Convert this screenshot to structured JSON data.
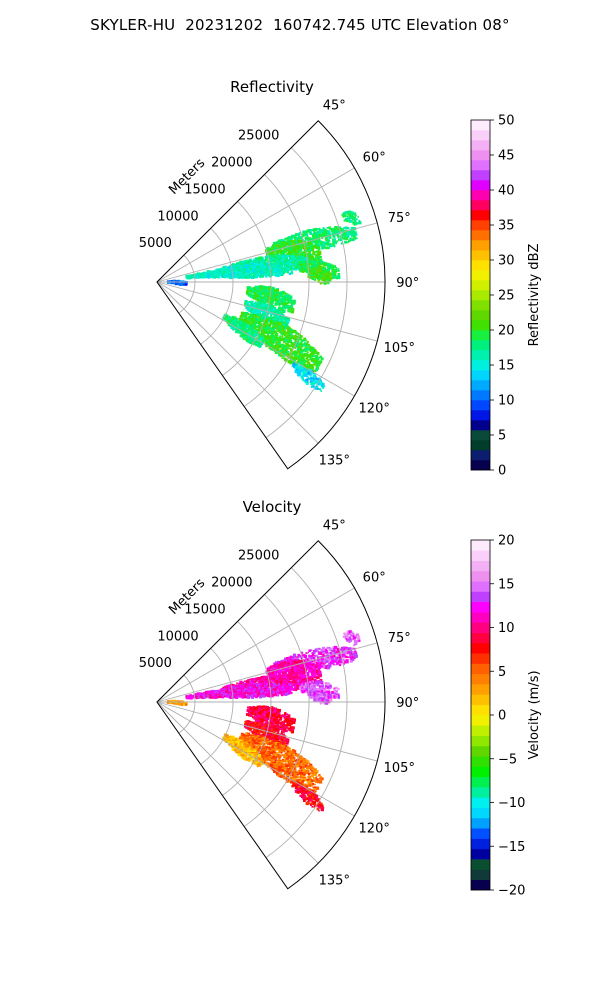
{
  "suptitle": "SKYLER-HU  20231202  160742.745 UTC Elevation 08°",
  "chart_data": [
    {
      "type": "polar-sector-heatmap",
      "title": "Reflectivity",
      "radial_label": "Meters",
      "angle_range_deg": [
        45,
        145
      ],
      "r_max": 30000,
      "angle_ticks": [
        45,
        60,
        75,
        90,
        105,
        120,
        135
      ],
      "angle_tick_labels": [
        "45°",
        "60°",
        "75°",
        "90°",
        "105°",
        "120°",
        "135°"
      ],
      "r_ticks": [
        5000,
        10000,
        15000,
        20000,
        25000
      ],
      "r_tick_labels": [
        "5000",
        "10000",
        "15000",
        "20000",
        "25000"
      ],
      "colorbar": {
        "label": "Reflectivity dBZ",
        "range": [
          0,
          50
        ],
        "ticks": [
          0,
          5,
          10,
          15,
          20,
          25,
          30,
          35,
          40,
          45,
          50
        ],
        "tick_labels": [
          "0",
          "5",
          "10",
          "15",
          "20",
          "25",
          "30",
          "35",
          "40",
          "45",
          "50"
        ],
        "colors": [
          "#07004f",
          "#0b1d6e",
          "#003d2a",
          "#0a4a3a",
          "#00008c",
          "#0016e6",
          "#0047ff",
          "#0079ff",
          "#00aaff",
          "#00d5ff",
          "#00f0e0",
          "#00f0b0",
          "#00f080",
          "#18f040",
          "#40e000",
          "#60d800",
          "#80e000",
          "#a8ea00",
          "#d0f000",
          "#f0f000",
          "#ffe000",
          "#ffc000",
          "#ffa000",
          "#ff7000",
          "#ff4000",
          "#ff0000",
          "#ff0060",
          "#ff00b0",
          "#e000ff",
          "#c040ff",
          "#e070ff",
          "#ee90f0",
          "#f4b0f4",
          "#fad0fa",
          "#fdebfd"
        ]
      },
      "echoes": [
        {
          "az": 75,
          "r": [
            16000,
            27000
          ],
          "w": 3.5,
          "v": 18
        },
        {
          "az": 78,
          "r": [
            15000,
            22000
          ],
          "w": 5,
          "v": 20
        },
        {
          "az": 81,
          "r": [
            9000,
            20000
          ],
          "w": 4,
          "v": 17
        },
        {
          "az": 83,
          "r": [
            4000,
            18000
          ],
          "w": 4,
          "v": 16
        },
        {
          "az": 86,
          "r": [
            19000,
            24000
          ],
          "w": 3,
          "v": 19
        },
        {
          "az": 88,
          "r": [
            20000,
            23000
          ],
          "w": 2.5,
          "v": 21
        },
        {
          "az": 92,
          "r": [
            1500,
            4000
          ],
          "w": 4,
          "v": 10
        },
        {
          "az": 98,
          "r": [
            12000,
            18500
          ],
          "w": 5,
          "v": 19
        },
        {
          "az": 106,
          "r": [
            12000,
            18000
          ],
          "w": 4,
          "v": 17
        },
        {
          "az": 115,
          "r": [
            12000,
            24000
          ],
          "w": 6,
          "v": 20
        },
        {
          "az": 119,
          "r": [
            10000,
            16000
          ],
          "w": 4,
          "v": 18
        },
        {
          "az": 122,
          "r": [
            21000,
            26000
          ],
          "w": 2,
          "v": 14
        },
        {
          "az": 72,
          "r": [
            26000,
            28000
          ],
          "w": 2,
          "v": 18
        }
      ]
    },
    {
      "type": "polar-sector-heatmap",
      "title": "Velocity",
      "radial_label": "Meters",
      "angle_range_deg": [
        45,
        145
      ],
      "r_max": 30000,
      "angle_ticks": [
        45,
        60,
        75,
        90,
        105,
        120,
        135
      ],
      "angle_tick_labels": [
        "45°",
        "60°",
        "75°",
        "90°",
        "105°",
        "120°",
        "135°"
      ],
      "r_ticks": [
        5000,
        10000,
        15000,
        20000,
        25000
      ],
      "r_tick_labels": [
        "5000",
        "10000",
        "15000",
        "20000",
        "25000"
      ],
      "colorbar": {
        "label": "Velocity (m/s)",
        "range": [
          -20,
          20
        ],
        "ticks": [
          -20,
          -15,
          -10,
          -5,
          0,
          5,
          10,
          15,
          20
        ],
        "tick_labels": [
          "−20",
          "−15",
          "−10",
          "−5",
          "0",
          "5",
          "10",
          "15",
          "20"
        ],
        "colors": [
          "#07004f",
          "#103a3a",
          "#0a5030",
          "#0000a0",
          "#0020e0",
          "#0050ff",
          "#00a0ff",
          "#00d8ff",
          "#00f0f0",
          "#00f0a0",
          "#00f050",
          "#00f000",
          "#30e000",
          "#60d800",
          "#90e800",
          "#c0f000",
          "#f0f000",
          "#ffe000",
          "#ffc000",
          "#ffa000",
          "#ff8000",
          "#ff6000",
          "#ff3000",
          "#ff0000",
          "#ff0040",
          "#ff0080",
          "#ff00c0",
          "#ff00ff",
          "#c040ff",
          "#e070ff",
          "#ee90f0",
          "#f4b0f4",
          "#fad0fa",
          "#fdebfd"
        ]
      },
      "echoes": [
        {
          "az": 75,
          "r": [
            16000,
            27000
          ],
          "w": 3.5,
          "v": 13
        },
        {
          "az": 78,
          "r": [
            15000,
            22000
          ],
          "w": 5,
          "v": 11
        },
        {
          "az": 81,
          "r": [
            9000,
            20000
          ],
          "w": 4,
          "v": 11
        },
        {
          "az": 83,
          "r": [
            4000,
            18000
          ],
          "w": 4,
          "v": 12
        },
        {
          "az": 86,
          "r": [
            19000,
            24000
          ],
          "w": 3,
          "v": 14
        },
        {
          "az": 88,
          "r": [
            20000,
            23000
          ],
          "w": 2.5,
          "v": 14
        },
        {
          "az": 92,
          "r": [
            1500,
            4000
          ],
          "w": 4,
          "v": 3
        },
        {
          "az": 98,
          "r": [
            12000,
            18500
          ],
          "w": 5,
          "v": 9
        },
        {
          "az": 106,
          "r": [
            12000,
            18000
          ],
          "w": 4,
          "v": 8
        },
        {
          "az": 115,
          "r": [
            12000,
            24000
          ],
          "w": 6,
          "v": 5
        },
        {
          "az": 119,
          "r": [
            10000,
            16000
          ],
          "w": 4,
          "v": 2
        },
        {
          "az": 122,
          "r": [
            21000,
            26000
          ],
          "w": 2,
          "v": 8
        },
        {
          "az": 72,
          "r": [
            26000,
            28000
          ],
          "w": 2,
          "v": 14
        }
      ]
    }
  ]
}
